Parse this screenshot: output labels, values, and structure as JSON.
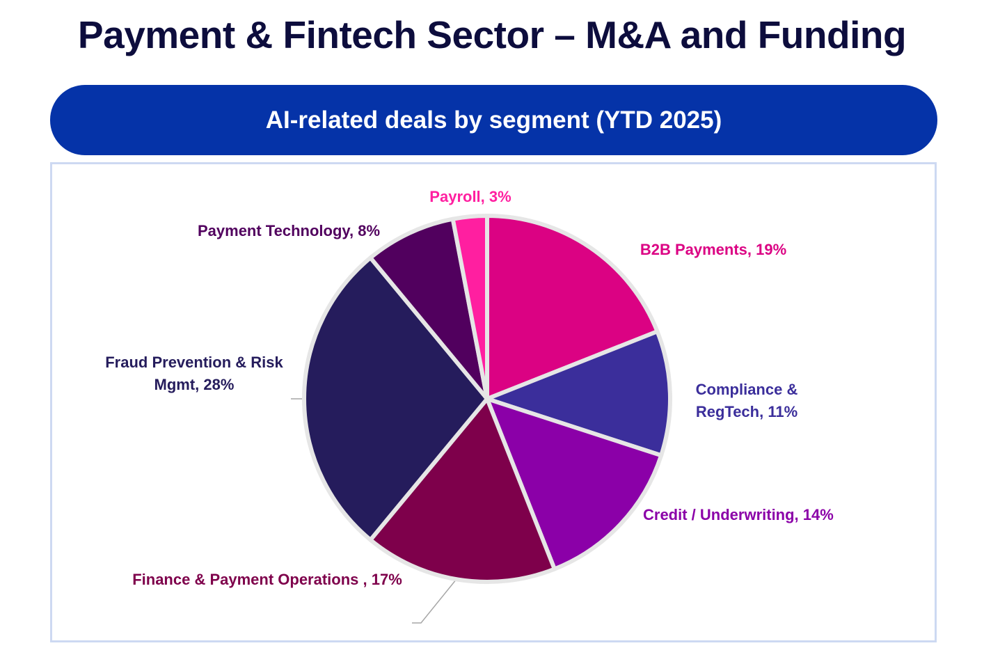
{
  "header": {
    "title": "Payment & Fintech Sector – M&A and Funding",
    "subtitle": "AI-related deals by segment (YTD 2025)"
  },
  "colors": {
    "title": "#0d0d3d",
    "banner": "#0533a8",
    "frame_border": "#cdd9f2"
  },
  "chart_data": {
    "type": "pie",
    "title": "",
    "slices": [
      {
        "name": "B2B Payments",
        "value": 19,
        "color": "#db0283",
        "label_lines": [
          "B2B Payments, 19%"
        ]
      },
      {
        "name": "Compliance & RegTech",
        "value": 11,
        "color": "#3b2e9b",
        "label_lines": [
          "Compliance &",
          "RegTech, 11%"
        ]
      },
      {
        "name": "Credit / Underwriting",
        "value": 14,
        "color": "#8b00a8",
        "label_lines": [
          "Credit / Underwriting, 14%"
        ]
      },
      {
        "name": "Finance & Payment Operations",
        "value": 17,
        "color": "#7e004b",
        "label_lines": [
          "Finance & Payment Operations , 17%"
        ]
      },
      {
        "name": "Fraud Prevention & Risk Mgmt",
        "value": 28,
        "color": "#251c5c",
        "label_lines": [
          "Fraud Prevention & Risk",
          "Mgmt, 28%"
        ]
      },
      {
        "name": "Payment Technology",
        "value": 8,
        "color": "#51005e",
        "label_lines": [
          "Payment Technology, 8%"
        ]
      },
      {
        "name": "Payroll",
        "value": 3,
        "color": "#ff1fa0",
        "label_lines": [
          "Payroll, 3%"
        ]
      }
    ]
  }
}
